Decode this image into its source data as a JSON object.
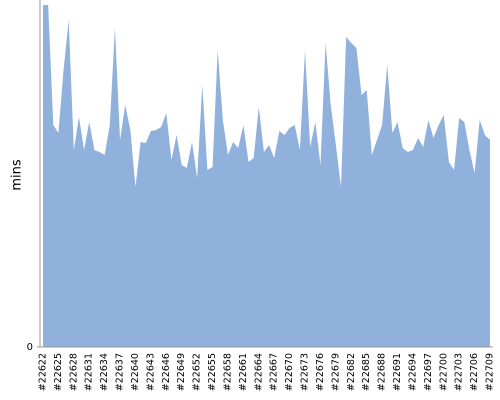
{
  "chart_data": {
    "type": "area",
    "y_label": "mins",
    "color": "#8fb1dc",
    "categories": [
      "#22622",
      null,
      null,
      "#22625",
      null,
      null,
      "#22628",
      null,
      null,
      "#22631",
      null,
      null,
      "#22634",
      null,
      null,
      "#22637",
      null,
      null,
      "#22640",
      null,
      null,
      "#22643",
      null,
      null,
      "#22646",
      null,
      null,
      "#22649",
      null,
      null,
      "#22652",
      null,
      null,
      "#22655",
      null,
      null,
      "#22658",
      null,
      null,
      "#22661",
      null,
      null,
      "#22664",
      null,
      null,
      "#22667",
      null,
      null,
      "#22670",
      null,
      null,
      "#22673",
      null,
      null,
      "#22676",
      null,
      null,
      "#22679",
      null,
      null,
      "#22682",
      null,
      null,
      "#22685",
      null,
      null,
      "#22688",
      null,
      null,
      "#22691",
      null,
      null,
      "#22694",
      null,
      null,
      "#22697",
      null,
      null,
      "#22700",
      null,
      null,
      "#22703",
      null,
      null,
      "#22706",
      null,
      null,
      "#22709"
    ],
    "values": [
      342,
      342,
      222,
      214,
      277,
      327,
      197,
      230,
      197,
      225,
      197,
      195,
      192,
      222,
      319,
      207,
      242,
      217,
      160,
      205,
      204,
      216,
      217,
      220,
      234,
      187,
      212,
      182,
      179,
      205,
      169,
      262,
      177,
      180,
      297,
      227,
      192,
      205,
      199,
      222,
      185,
      189,
      240,
      195,
      202,
      189,
      216,
      212,
      219,
      222,
      197,
      297,
      200,
      225,
      182,
      304,
      242,
      202,
      160,
      310,
      304,
      299,
      252,
      257,
      192,
      207,
      222,
      282,
      214,
      225,
      199,
      195,
      197,
      209,
      200,
      227,
      209,
      222,
      232,
      185,
      177,
      229,
      225,
      197,
      174,
      227,
      212,
      207
    ],
    "ylim": [
      0,
      342
    ],
    "yticks": [
      0
    ]
  }
}
